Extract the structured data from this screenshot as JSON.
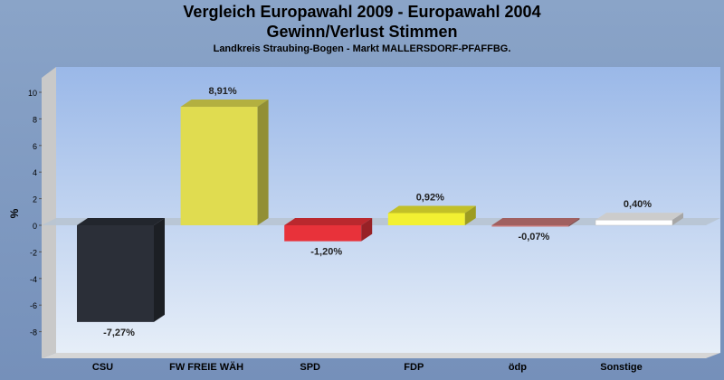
{
  "chart_data": {
    "type": "bar",
    "title_line1": "Vergleich Europawahl 2009 - Europawahl 2004",
    "title_line2": "Gewinn/Verlust Stimmen",
    "subtitle": "Landkreis Straubing-Bogen - Markt MALLERSDORF-PFAFFBG.",
    "ylabel": "%",
    "xlabel": "",
    "categories": [
      "CSU",
      "FW FREIE WÄH",
      "SPD",
      "FDP",
      "ödp",
      "Sonstige"
    ],
    "values": [
      -7.27,
      8.91,
      -1.2,
      0.92,
      -0.07,
      0.4
    ],
    "value_labels": [
      "-7,27%",
      "8,91%",
      "-1,20%",
      "0,92%",
      "-0,07%",
      "0,40%"
    ],
    "colors": [
      "#2b2f38",
      "#e0dc50",
      "#e8323a",
      "#f2f032",
      "#c87878",
      "#ffffff"
    ],
    "yticks": [
      10,
      8,
      6,
      4,
      2,
      0,
      -2,
      -4,
      -6,
      -8
    ],
    "ylim": [
      -9.5,
      11
    ],
    "grid": false,
    "legend": "none"
  }
}
